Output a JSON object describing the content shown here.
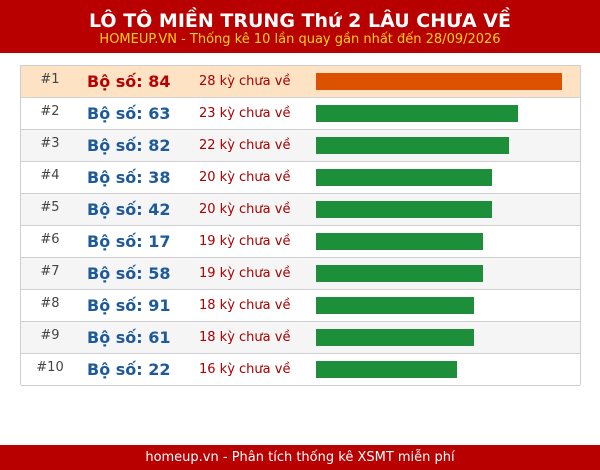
{
  "header": {
    "title": "LÔ TÔ MIỀN TRUNG Thứ 2 LÂU CHƯA VỀ",
    "subtitle": "HOMEUP.VN - Thống kê 10 lần quay gần nhất đến 28/09/2026"
  },
  "colors": {
    "header_bg": "#b80000",
    "subtitle": "#ffd21a",
    "top_row_bg": "#fde2c3",
    "top_bar": "#dc5200",
    "bar": "#1d8e3a",
    "number_text": "#1d5a9a",
    "days_text": "#a80000"
  },
  "rows": [
    {
      "rank": "#1",
      "label": "Bộ số: 84",
      "days_text": "28 kỳ chưa về",
      "days": 28
    },
    {
      "rank": "#2",
      "label": "Bộ số: 63",
      "days_text": "23 kỳ chưa về",
      "days": 23
    },
    {
      "rank": "#3",
      "label": "Bộ số: 82",
      "days_text": "22 kỳ chưa về",
      "days": 22
    },
    {
      "rank": "#4",
      "label": "Bộ số: 38",
      "days_text": "20 kỳ chưa về",
      "days": 20
    },
    {
      "rank": "#5",
      "label": "Bộ số: 42",
      "days_text": "20 kỳ chưa về",
      "days": 20
    },
    {
      "rank": "#6",
      "label": "Bộ số: 17",
      "days_text": "19 kỳ chưa về",
      "days": 19
    },
    {
      "rank": "#7",
      "label": "Bộ số: 58",
      "days_text": "19 kỳ chưa về",
      "days": 19
    },
    {
      "rank": "#8",
      "label": "Bộ số: 91",
      "days_text": "18 kỳ chưa về",
      "days": 18
    },
    {
      "rank": "#9",
      "label": "Bộ số: 61",
      "days_text": "18 kỳ chưa về",
      "days": 18
    },
    {
      "rank": "#10",
      "label": "Bộ số: 22",
      "days_text": "16 kỳ chưa về",
      "days": 16
    }
  ],
  "footer": {
    "text": "homeup.vn - Phân tích thống kê XSMT miễn phí"
  }
}
